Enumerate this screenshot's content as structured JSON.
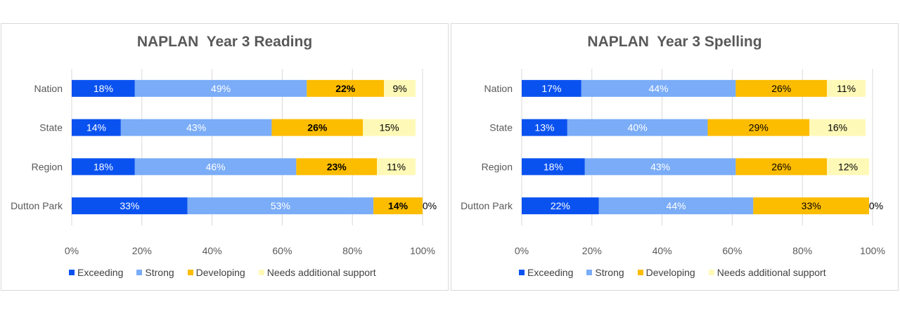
{
  "chart_data": [
    {
      "type": "bar",
      "orientation": "horizontal",
      "stacked": true,
      "title": "NAPLAN  Year 3 Reading",
      "categories": [
        "Nation",
        "State",
        "Region",
        "Dutton Park"
      ],
      "series": [
        {
          "name": "Exceeding",
          "color": "#0a52f0",
          "values": [
            18,
            14,
            18,
            33
          ],
          "labels": [
            "18%",
            "14%",
            "18%",
            "33%"
          ]
        },
        {
          "name": "Strong",
          "color": "#7aacf7",
          "values": [
            49,
            43,
            46,
            53
          ],
          "labels": [
            "49%",
            "43%",
            "46%",
            "53%"
          ]
        },
        {
          "name": "Developing",
          "color": "#fcbc00",
          "values": [
            22,
            26,
            23,
            14
          ],
          "labels": [
            "22%",
            "26%",
            "23%",
            "14%"
          ]
        },
        {
          "name": "Needs additional support",
          "color": "#fff9b8",
          "values": [
            9,
            15,
            11,
            0
          ],
          "labels": [
            "9%",
            "15%",
            "11%",
            "0%"
          ]
        }
      ],
      "xlim": [
        0,
        100
      ],
      "xticks": [
        "0%",
        "20%",
        "40%",
        "60%",
        "80%",
        "100%"
      ],
      "grid": true,
      "legend": "bottom"
    },
    {
      "type": "bar",
      "orientation": "horizontal",
      "stacked": true,
      "title": "NAPLAN  Year 3 Spelling",
      "categories": [
        "Nation",
        "State",
        "Region",
        "Dutton Park"
      ],
      "series": [
        {
          "name": "Exceeding",
          "color": "#0a52f0",
          "values": [
            17,
            13,
            18,
            22
          ],
          "labels": [
            "17%",
            "13%",
            "18%",
            "22%"
          ]
        },
        {
          "name": "Strong",
          "color": "#7aacf7",
          "values": [
            44,
            40,
            43,
            44
          ],
          "labels": [
            "44%",
            "40%",
            "43%",
            "44%"
          ]
        },
        {
          "name": "Developing",
          "color": "#fcbc00",
          "values": [
            26,
            29,
            26,
            33
          ],
          "labels": [
            "26%",
            "29%",
            "26%",
            "33%"
          ]
        },
        {
          "name": "Needs additional support",
          "color": "#fff9b8",
          "values": [
            11,
            16,
            12,
            0
          ],
          "labels": [
            "11%",
            "16%",
            "12%",
            "0%"
          ]
        }
      ],
      "xlim": [
        0,
        100
      ],
      "xticks": [
        "0%",
        "20%",
        "40%",
        "60%",
        "80%",
        "100%"
      ],
      "grid": true,
      "legend": "bottom"
    }
  ]
}
